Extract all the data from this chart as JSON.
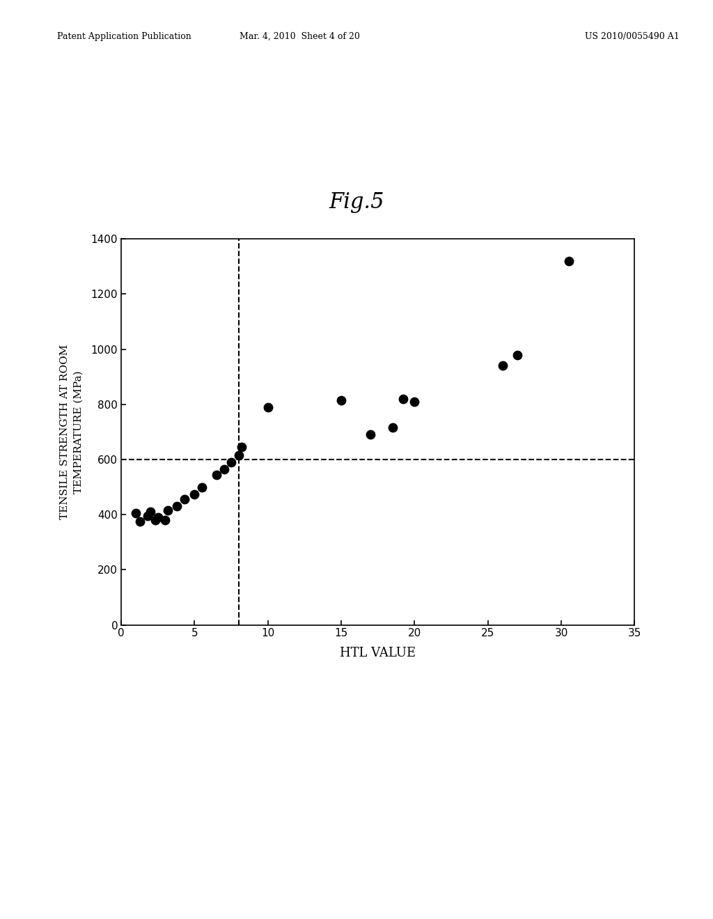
{
  "title": "Fig.5",
  "xlabel": "HTL VALUE",
  "ylabel": "TENSILE STRENGTH AT ROOM\nTEMPERATURE (MPa)",
  "xlim": [
    0,
    35
  ],
  "ylim": [
    0,
    1400
  ],
  "xticks": [
    0,
    5,
    10,
    15,
    20,
    25,
    30,
    35
  ],
  "yticks": [
    0,
    200,
    400,
    600,
    800,
    1000,
    1200,
    1400
  ],
  "vline_x": 8,
  "hline_y": 600,
  "scatter_x": [
    1.0,
    1.3,
    1.8,
    2.0,
    2.3,
    2.5,
    3.0,
    3.2,
    3.8,
    4.3,
    5.0,
    5.5,
    6.5,
    7.0,
    7.5,
    8.0,
    8.2,
    10.0,
    15.0,
    17.0,
    18.5,
    19.2,
    20.0,
    26.0,
    27.0,
    30.5
  ],
  "scatter_y": [
    405,
    375,
    395,
    410,
    380,
    390,
    380,
    415,
    430,
    455,
    475,
    500,
    545,
    565,
    590,
    615,
    645,
    790,
    815,
    690,
    715,
    820,
    810,
    940,
    980,
    1320
  ],
  "header_left": "Patent Application Publication",
  "header_center": "Mar. 4, 2010  Sheet 4 of 20",
  "header_right": "US 2010/0055490 A1",
  "background_color": "#ffffff",
  "dot_color": "#000000",
  "dot_size": 80
}
